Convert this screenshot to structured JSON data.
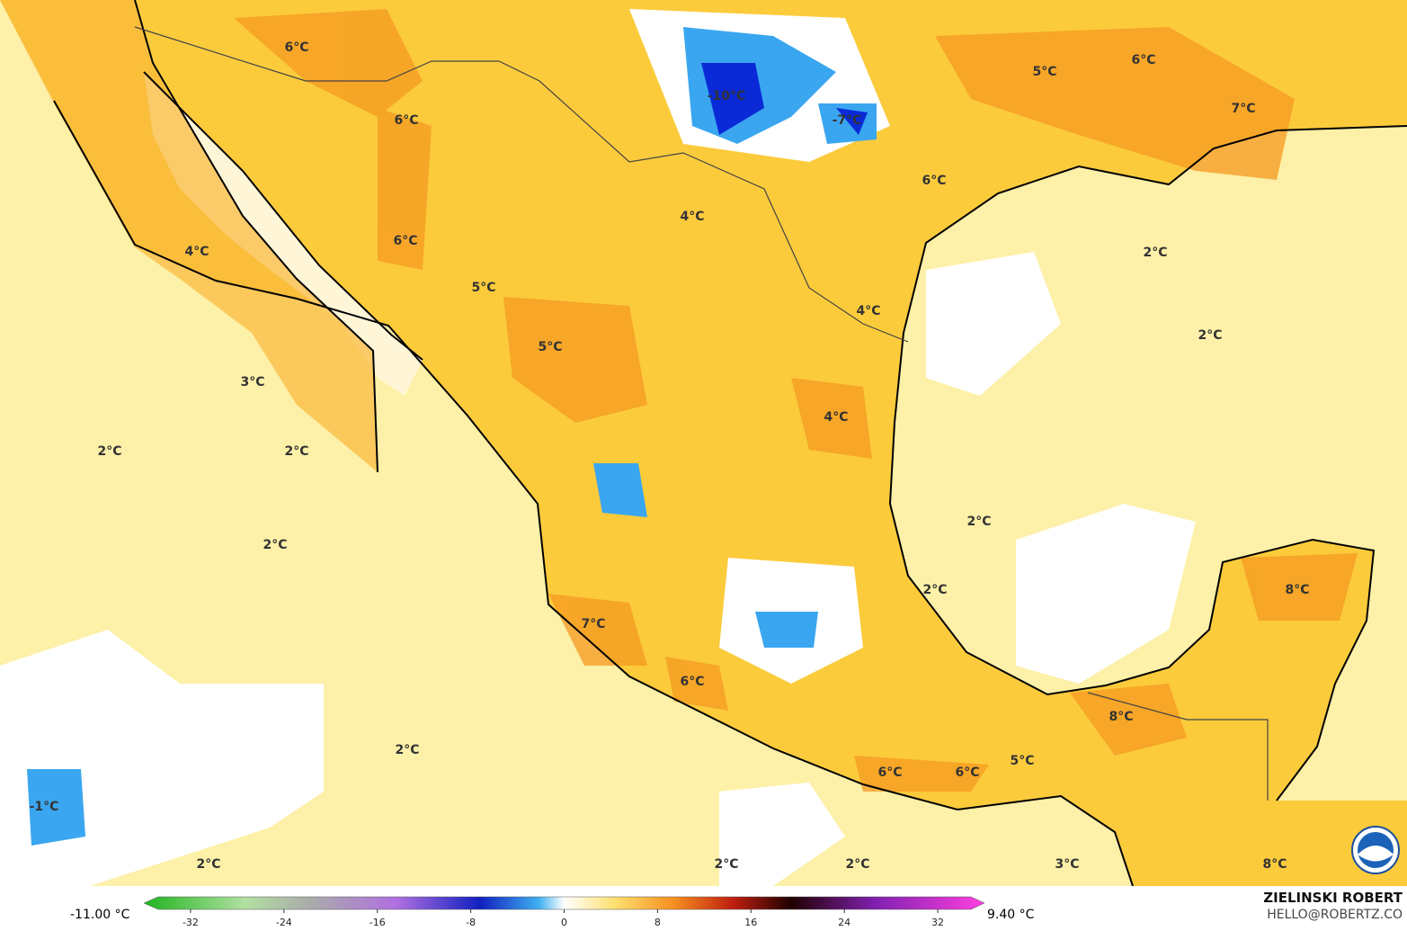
{
  "map": {
    "labels": [
      "6°C",
      "6°C",
      "-10°C",
      "-7°C",
      "5°C",
      "6°C",
      "7°C",
      "6°C",
      "4°C",
      "6°C",
      "4°C",
      "2°C",
      "5°C",
      "4°C",
      "2°C",
      "5°C",
      "3°C",
      "4°C",
      "2°C",
      "2°C",
      "2°C",
      "2°C",
      "2°C",
      "8°C",
      "7°C",
      "6°C",
      "8°C",
      "2°C",
      "5°C",
      "6°C",
      "6°C",
      "-1°C",
      "2°C",
      "2°C",
      "2°C",
      "3°C",
      "8°C"
    ]
  },
  "colorbar": {
    "min_label": "-11.00 °C",
    "max_label": "9.40 °C",
    "lim": [
      -36,
      36
    ],
    "ticks": [
      -32,
      -24,
      -16,
      -8,
      0,
      8,
      16,
      24,
      32
    ]
  },
  "credit": {
    "name": "ZIELINSKI ROBERT",
    "contact": "HELLO@ROBERTZ.CO"
  }
}
